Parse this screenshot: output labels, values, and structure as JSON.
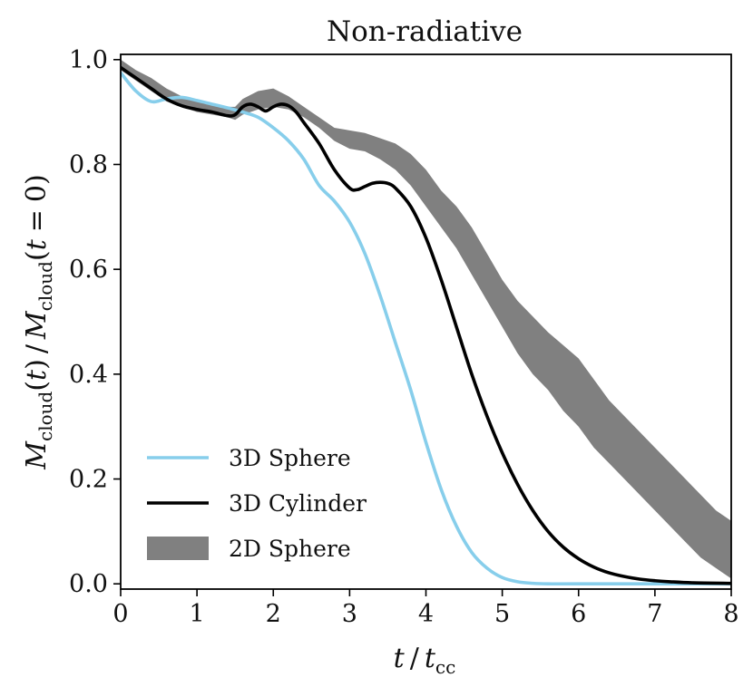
{
  "chart_data": {
    "type": "line",
    "title": "Non-radiative",
    "xlabel": "t / t_cc",
    "ylabel": "M_cloud(t) / M_cloud(t = 0)",
    "xlim": [
      0,
      8
    ],
    "ylim": [
      -0.01,
      1.01
    ],
    "x_ticks": [
      0,
      1,
      2,
      3,
      4,
      5,
      6,
      7,
      8
    ],
    "x_tick_labels": [
      "0",
      "1",
      "2",
      "3",
      "4",
      "5",
      "6",
      "7",
      "8"
    ],
    "y_ticks": [
      0.0,
      0.2,
      0.4,
      0.6,
      0.8,
      1.0
    ],
    "y_tick_labels": [
      "0.0",
      "0.2",
      "0.4",
      "0.6",
      "0.8",
      "1.0"
    ],
    "legend_position": "lower-left",
    "series": [
      {
        "name": "3D Sphere",
        "kind": "line",
        "color": "#87CEEB",
        "x": [
          0,
          0.2,
          0.4,
          0.6,
          0.8,
          1.0,
          1.2,
          1.4,
          1.6,
          1.8,
          2.0,
          2.2,
          2.4,
          2.6,
          2.8,
          3.0,
          3.2,
          3.4,
          3.6,
          3.8,
          4.0,
          4.2,
          4.4,
          4.6,
          4.8,
          5.0,
          5.2,
          5.4,
          5.6,
          6.0,
          7.0,
          8.0
        ],
        "y": [
          0.975,
          0.94,
          0.92,
          0.925,
          0.928,
          0.922,
          0.915,
          0.908,
          0.9,
          0.89,
          0.87,
          0.845,
          0.81,
          0.76,
          0.73,
          0.69,
          0.63,
          0.55,
          0.46,
          0.37,
          0.27,
          0.18,
          0.11,
          0.06,
          0.03,
          0.012,
          0.004,
          0.001,
          0.0,
          0.0,
          0.0,
          0.0
        ]
      },
      {
        "name": "3D Cylinder",
        "kind": "line",
        "color": "#000000",
        "x": [
          0,
          0.2,
          0.4,
          0.6,
          0.8,
          1.0,
          1.2,
          1.4,
          1.5,
          1.6,
          1.7,
          1.8,
          1.9,
          2.0,
          2.1,
          2.2,
          2.3,
          2.4,
          2.6,
          2.8,
          3.0,
          3.1,
          3.2,
          3.3,
          3.4,
          3.5,
          3.6,
          3.8,
          4.0,
          4.2,
          4.4,
          4.6,
          4.8,
          5.0,
          5.2,
          5.4,
          5.6,
          5.8,
          6.0,
          6.2,
          6.4,
          6.6,
          6.8,
          7.0,
          7.2,
          7.5,
          8.0
        ],
        "y": [
          0.985,
          0.965,
          0.945,
          0.925,
          0.912,
          0.905,
          0.9,
          0.893,
          0.895,
          0.91,
          0.915,
          0.91,
          0.902,
          0.91,
          0.915,
          0.912,
          0.9,
          0.88,
          0.84,
          0.79,
          0.755,
          0.752,
          0.758,
          0.764,
          0.766,
          0.764,
          0.755,
          0.72,
          0.66,
          0.58,
          0.49,
          0.4,
          0.32,
          0.25,
          0.19,
          0.14,
          0.1,
          0.07,
          0.048,
          0.032,
          0.021,
          0.014,
          0.009,
          0.006,
          0.004,
          0.002,
          0.001
        ]
      },
      {
        "name": "2D Sphere",
        "kind": "band",
        "color": "#808080",
        "x": [
          0,
          0.2,
          0.4,
          0.6,
          0.8,
          1.0,
          1.2,
          1.4,
          1.5,
          1.6,
          1.8,
          2.0,
          2.2,
          2.4,
          2.6,
          2.8,
          3.0,
          3.2,
          3.4,
          3.6,
          3.8,
          4.0,
          4.2,
          4.4,
          4.6,
          4.8,
          5.0,
          5.2,
          5.4,
          5.6,
          5.8,
          6.0,
          6.2,
          6.4,
          6.6,
          6.8,
          7.0,
          7.2,
          7.4,
          7.6,
          7.8,
          8.0
        ],
        "upper": [
          1.0,
          0.98,
          0.965,
          0.945,
          0.93,
          0.92,
          0.915,
          0.91,
          0.91,
          0.925,
          0.94,
          0.945,
          0.93,
          0.91,
          0.89,
          0.87,
          0.865,
          0.86,
          0.85,
          0.84,
          0.82,
          0.79,
          0.75,
          0.72,
          0.68,
          0.63,
          0.58,
          0.54,
          0.51,
          0.48,
          0.455,
          0.43,
          0.39,
          0.35,
          0.32,
          0.29,
          0.26,
          0.23,
          0.2,
          0.17,
          0.14,
          0.12
        ],
        "lower": [
          0.98,
          0.96,
          0.94,
          0.92,
          0.91,
          0.9,
          0.895,
          0.89,
          0.885,
          0.895,
          0.905,
          0.91,
          0.905,
          0.89,
          0.87,
          0.845,
          0.83,
          0.825,
          0.81,
          0.79,
          0.76,
          0.72,
          0.68,
          0.64,
          0.59,
          0.54,
          0.49,
          0.44,
          0.4,
          0.37,
          0.33,
          0.3,
          0.26,
          0.23,
          0.2,
          0.17,
          0.14,
          0.11,
          0.08,
          0.05,
          0.03,
          0.01
        ]
      }
    ]
  }
}
